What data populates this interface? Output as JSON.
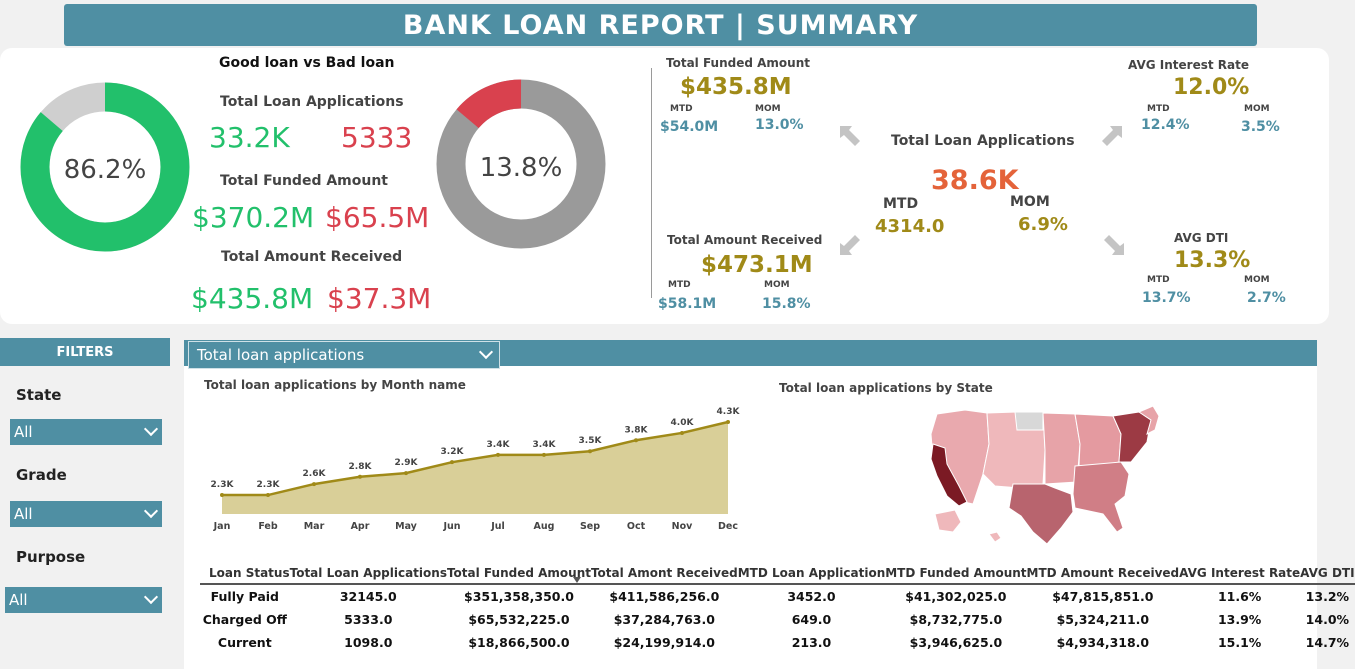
{
  "title": "BANK LOAN REPORT | SUMMARY",
  "good_bad": {
    "heading": "Good loan vs Bad loan",
    "good_pct_label": "86.2%",
    "good_pct": 0.862,
    "bad_pct_label": "13.8%",
    "bad_pct": 0.138,
    "apps_label": "Total Loan Applications",
    "apps_good": "33.2K",
    "apps_bad": "5333",
    "funded_label": "Total Funded Amount",
    "funded_good": "$370.2M",
    "funded_bad": "$65.5M",
    "received_label": "Total Amount Received",
    "received_good": "$435.8M",
    "received_bad": "$37.3M",
    "colors": {
      "good": "#22c06b",
      "bad": "#d9414e",
      "good_rest": "#cfcfcf",
      "bad_rest": "#9a9a9a"
    }
  },
  "kpis": {
    "funded": {
      "label": "Total Funded Amount",
      "value": "$435.8M",
      "mtd_label": "MTD",
      "mtd": "$54.0M",
      "mom_label": "MOM",
      "mom": "13.0%"
    },
    "received": {
      "label": "Total Amount Received",
      "value": "$473.1M",
      "mtd_label": "MTD",
      "mtd": "$58.1M",
      "mom_label": "MOM",
      "mom": "15.8%"
    },
    "apps": {
      "label": "Total Loan Applications",
      "value": "38.6K",
      "mtd_label": "MTD",
      "mtd": "4314.0",
      "mom_label": "MOM",
      "mom": "6.9%"
    },
    "interest": {
      "label": "AVG Interest Rate",
      "value": "12.0%",
      "mtd_label": "MTD",
      "mtd": "12.4%",
      "mom_label": "MOM",
      "mom": "3.5%"
    },
    "dti": {
      "label": "AVG DTI",
      "value": "13.3%",
      "mtd_label": "MTD",
      "mtd": "13.7%",
      "mom_label": "MOM",
      "mom": "2.7%"
    }
  },
  "filters": {
    "heading": "FILTERS",
    "state_label": "State",
    "state_value": "All",
    "grade_label": "Grade",
    "grade_value": "All",
    "purpose_label": "Purpose",
    "purpose_value": "All"
  },
  "measure_select": "Total loan applications",
  "month_chart_title": "Total loan applications by Month name",
  "state_chart_title": "Total loan applications by State",
  "chart_data": {
    "type": "area",
    "title": "Total loan applications by Month name",
    "categories": [
      "Jan",
      "Feb",
      "Mar",
      "Apr",
      "May",
      "Jun",
      "Jul",
      "Aug",
      "Sep",
      "Oct",
      "Nov",
      "Dec"
    ],
    "values": [
      2.3,
      2.3,
      2.6,
      2.8,
      2.9,
      3.2,
      3.4,
      3.4,
      3.5,
      3.8,
      4.0,
      4.3
    ],
    "data_labels": [
      "2.3K",
      "2.3K",
      "2.6K",
      "2.8K",
      "2.9K",
      "3.2K",
      "3.4K",
      "3.4K",
      "3.5K",
      "3.8K",
      "4.0K",
      "4.3K"
    ],
    "ylim": [
      0,
      4.3
    ],
    "fill": "#d9cf98",
    "line": "#a08a18"
  },
  "table": {
    "headers": [
      "Loan Status",
      "Total Loan Applications",
      "Total Funded Amount",
      "Total Amont Received",
      "MTD Loan Application",
      "MTD Funded Amount",
      "MTD Amount Received",
      "AVG Interest Rate",
      "AVG DTI"
    ],
    "rows": [
      [
        "Fully Paid",
        "32145.0",
        "$351,358,350.0",
        "$411,586,256.0",
        "3452.0",
        "$41,302,025.0",
        "$47,815,851.0",
        "11.6%",
        "13.2%"
      ],
      [
        "Charged Off",
        "5333.0",
        "$65,532,225.0",
        "$37,284,763.0",
        "649.0",
        "$8,732,775.0",
        "$5,324,211.0",
        "13.9%",
        "14.0%"
      ],
      [
        "Current",
        "1098.0",
        "$18,866,500.0",
        "$24,199,914.0",
        "213.0",
        "$3,946,625.0",
        "$4,934,318.0",
        "15.1%",
        "14.7%"
      ]
    ]
  }
}
